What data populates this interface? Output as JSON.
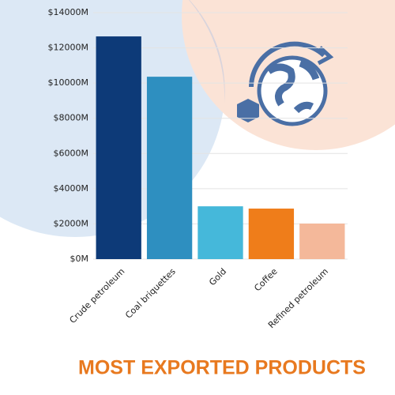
{
  "chart_data": {
    "type": "bar",
    "title": "MOST EXPORTED PRODUCTS",
    "categories": [
      "Crude petroleum",
      "Coal briquettes",
      "Gold",
      "Coffee",
      "Refined petroleum"
    ],
    "values": [
      12650,
      10360,
      3000,
      2870,
      2020
    ],
    "colors": [
      "#0d3a78",
      "#2e8fc0",
      "#45b8da",
      "#ef7d1a",
      "#f4b89a"
    ],
    "ylim": [
      0,
      14000
    ],
    "yticks": [
      {
        "value": 0,
        "label": "$0M"
      },
      {
        "value": 2000,
        "label": "$2000M"
      },
      {
        "value": 4000,
        "label": "$4000M"
      },
      {
        "value": 6000,
        "label": "$6000M"
      },
      {
        "value": 8000,
        "label": "$8000M"
      },
      {
        "value": 10000,
        "label": "$10000M"
      },
      {
        "value": 12000,
        "label": "$12000M"
      },
      {
        "value": 14000,
        "label": "$14000M"
      }
    ],
    "grid": true
  }
}
